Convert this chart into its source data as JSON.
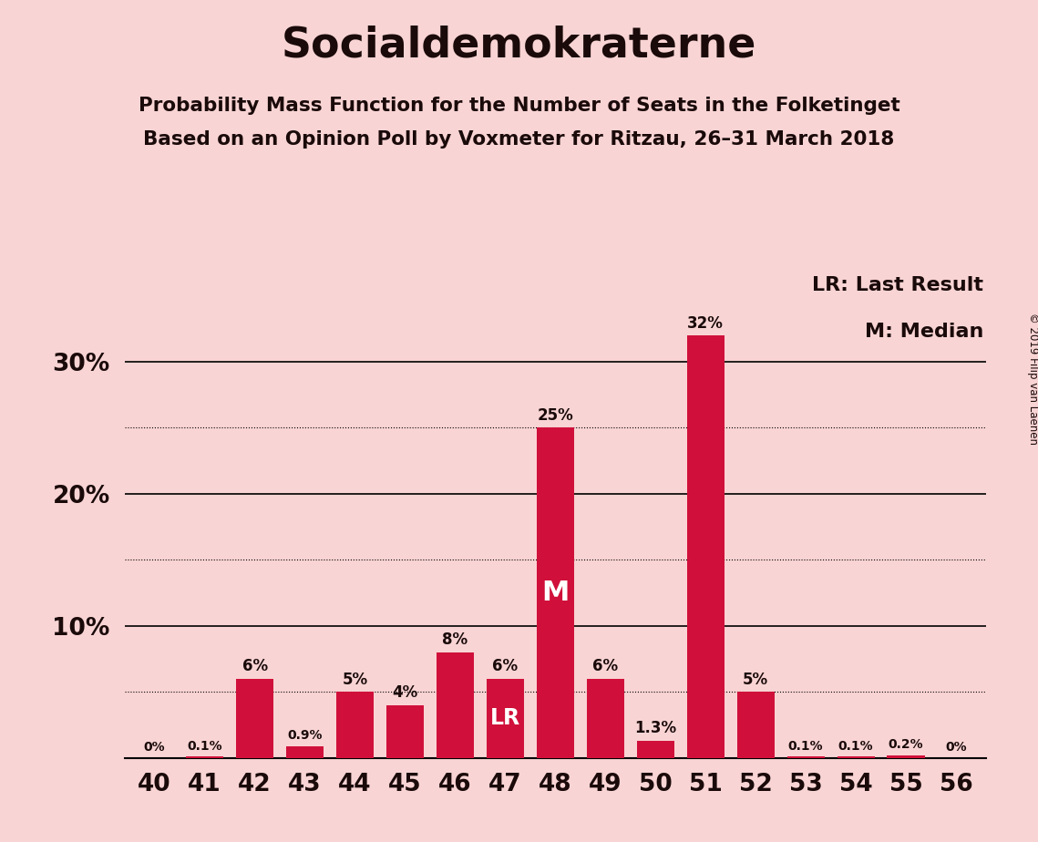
{
  "title": "Socialdemokraterne",
  "subtitle1": "Probability Mass Function for the Number of Seats in the Folketinget",
  "subtitle2": "Based on an Opinion Poll by Voxmeter for Ritzau, 26–31 March 2018",
  "copyright": "© 2019 Filip van Laenen",
  "seats": [
    40,
    41,
    42,
    43,
    44,
    45,
    46,
    47,
    48,
    49,
    50,
    51,
    52,
    53,
    54,
    55,
    56
  ],
  "values": [
    0.0,
    0.1,
    6.0,
    0.9,
    5.0,
    4.0,
    8.0,
    6.0,
    25.0,
    6.0,
    1.3,
    32.0,
    5.0,
    0.1,
    0.1,
    0.2,
    0.0
  ],
  "labels": [
    "0%",
    "0.1%",
    "6%",
    "0.9%",
    "5%",
    "4%",
    "8%",
    "6%",
    "25%",
    "6%",
    "1.3%",
    "32%",
    "5%",
    "0.1%",
    "0.1%",
    "0.2%",
    "0%"
  ],
  "bar_color": "#d0103a",
  "background_color": "#f9d4d4",
  "text_color": "#1a0a0a",
  "last_result_seat": 47,
  "median_seat": 48,
  "ylim": [
    0,
    37
  ],
  "legend_lr": "LR: Last Result",
  "legend_m": "M: Median",
  "dotted_levels": [
    5,
    15,
    25
  ],
  "solid_levels": [
    10,
    20,
    30
  ]
}
